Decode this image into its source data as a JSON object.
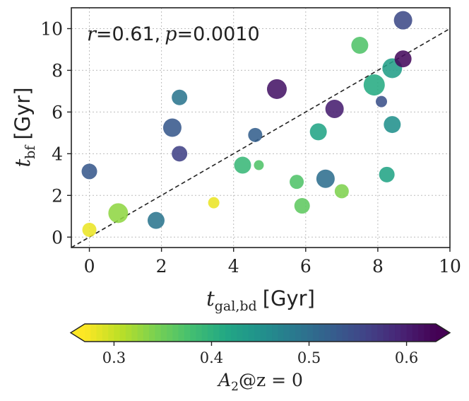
{
  "chart_data": {
    "type": "scatter",
    "title": "",
    "annotation": {
      "r_symbol": "r",
      "r_value": "=0.61,",
      "p_symbol": "p",
      "p_value": "=0.0010"
    },
    "xlabel": {
      "main": "t",
      "sub": "gal,bd",
      "unit": "[Gyr]"
    },
    "ylabel": {
      "main": "t",
      "sub": "bf",
      "unit": "[Gyr]"
    },
    "xlim": [
      -0.5,
      10
    ],
    "ylim": [
      -0.5,
      11
    ],
    "xticks": [
      0,
      2,
      4,
      6,
      8,
      10
    ],
    "yticks": [
      0,
      2,
      4,
      6,
      8,
      10
    ],
    "grid": true,
    "reference_line": "y = x (dashed)",
    "colorbar": {
      "label": "A",
      "label_sub": "2",
      "label_rest": "@z = 0",
      "min": 0.27,
      "max": 0.63,
      "ticks": [
        0.3,
        0.4,
        0.5,
        0.6
      ],
      "tick_labels": [
        "0.3",
        "0.4",
        "0.5",
        "0.6"
      ],
      "colormap": "viridis_r",
      "extend": "both",
      "orientation": "horizontal"
    },
    "points": [
      {
        "x": 0.0,
        "y": 0.35,
        "c": 0.28,
        "s": 10
      },
      {
        "x": 0.0,
        "y": 3.15,
        "c": 0.53,
        "s": 11
      },
      {
        "x": 0.8,
        "y": 1.15,
        "c": 0.33,
        "s": 14
      },
      {
        "x": 1.85,
        "y": 0.8,
        "c": 0.49,
        "s": 12
      },
      {
        "x": 2.3,
        "y": 5.25,
        "c": 0.53,
        "s": 13
      },
      {
        "x": 2.5,
        "y": 6.7,
        "c": 0.49,
        "s": 11
      },
      {
        "x": 2.5,
        "y": 4.0,
        "c": 0.56,
        "s": 11
      },
      {
        "x": 3.45,
        "y": 1.65,
        "c": 0.28,
        "s": 8
      },
      {
        "x": 4.25,
        "y": 3.45,
        "c": 0.39,
        "s": 12
      },
      {
        "x": 4.7,
        "y": 3.45,
        "c": 0.37,
        "s": 7
      },
      {
        "x": 4.6,
        "y": 4.9,
        "c": 0.52,
        "s": 10
      },
      {
        "x": 5.2,
        "y": 7.1,
        "c": 0.61,
        "s": 14
      },
      {
        "x": 5.75,
        "y": 2.65,
        "c": 0.37,
        "s": 10
      },
      {
        "x": 5.9,
        "y": 1.5,
        "c": 0.36,
        "s": 11
      },
      {
        "x": 6.35,
        "y": 5.05,
        "c": 0.42,
        "s": 12
      },
      {
        "x": 6.55,
        "y": 2.8,
        "c": 0.5,
        "s": 13
      },
      {
        "x": 6.8,
        "y": 6.15,
        "c": 0.6,
        "s": 13
      },
      {
        "x": 7.0,
        "y": 2.2,
        "c": 0.34,
        "s": 10
      },
      {
        "x": 7.5,
        "y": 9.2,
        "c": 0.37,
        "s": 12
      },
      {
        "x": 7.9,
        "y": 7.3,
        "c": 0.41,
        "s": 15
      },
      {
        "x": 8.1,
        "y": 6.5,
        "c": 0.54,
        "s": 8
      },
      {
        "x": 8.25,
        "y": 3.0,
        "c": 0.42,
        "s": 11
      },
      {
        "x": 8.4,
        "y": 5.4,
        "c": 0.45,
        "s": 12
      },
      {
        "x": 8.4,
        "y": 8.1,
        "c": 0.43,
        "s": 14
      },
      {
        "x": 8.7,
        "y": 8.55,
        "c": 0.62,
        "s": 12
      },
      {
        "x": 8.7,
        "y": 10.4,
        "c": 0.55,
        "s": 13
      }
    ]
  }
}
